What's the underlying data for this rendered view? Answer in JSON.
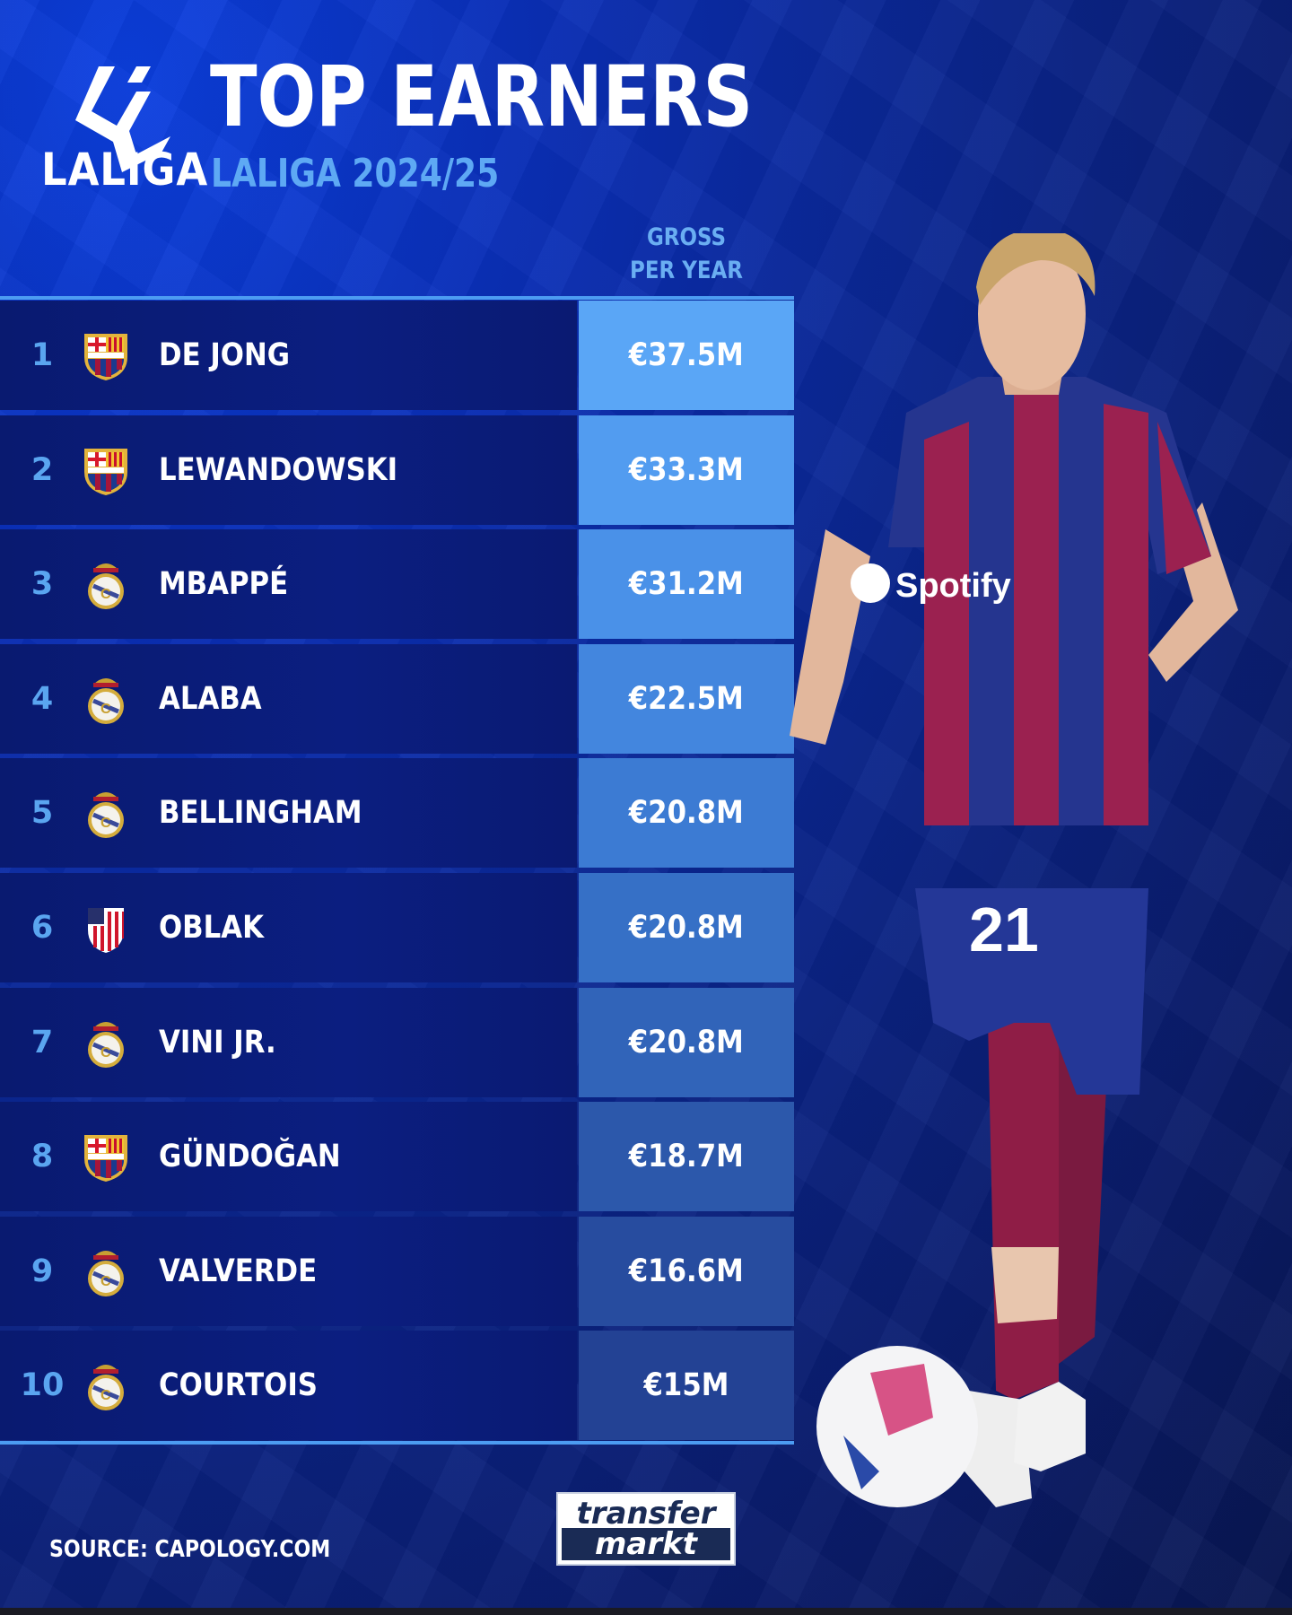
{
  "header": {
    "logo_text": "LALIGA",
    "title": "TOP EARNERS",
    "subtitle": "LALIGA 2024/25",
    "column_header": [
      "GROSS",
      "PER YEAR"
    ]
  },
  "table": {
    "rows": [
      {
        "rank": "1",
        "club": "barcelona",
        "name": "DE JONG",
        "value": "€37.5M",
        "color": "#5aa6f6"
      },
      {
        "rank": "2",
        "club": "barcelona",
        "name": "LEWANDOWSKI",
        "value": "€33.3M",
        "color": "#529cf0"
      },
      {
        "rank": "3",
        "club": "real-madrid",
        "name": "MBAPPÉ",
        "value": "€31.2M",
        "color": "#4a91e8"
      },
      {
        "rank": "4",
        "club": "real-madrid",
        "name": "ALABA",
        "value": "€22.5M",
        "color": "#4386de"
      },
      {
        "rank": "5",
        "club": "real-madrid",
        "name": "BELLINGHAM",
        "value": "€20.8M",
        "color": "#3c7bd3"
      },
      {
        "rank": "6",
        "club": "atletico-madrid",
        "name": "OBLAK",
        "value": "€20.8M",
        "color": "#3670c6"
      },
      {
        "rank": "7",
        "club": "real-madrid",
        "name": "VINI JR.",
        "value": "€20.8M",
        "color": "#3164b9"
      },
      {
        "rank": "8",
        "club": "barcelona",
        "name": "GÜNDOĞAN",
        "value": "€18.7M",
        "color": "#2c58ab"
      },
      {
        "rank": "9",
        "club": "real-madrid",
        "name": "VALVERDE",
        "value": "€16.6M",
        "color": "#274c9f"
      },
      {
        "rank": "10",
        "club": "real-madrid",
        "name": "COURTOIS",
        "value": "€15M",
        "color": "#234294"
      }
    ]
  },
  "footer": {
    "source": "SOURCE: CAPOLOGY.COM",
    "brand_logo": [
      "transfer",
      "markt"
    ]
  },
  "player_photo": {
    "shirt_number": "21",
    "sponsor": "Spotify"
  }
}
